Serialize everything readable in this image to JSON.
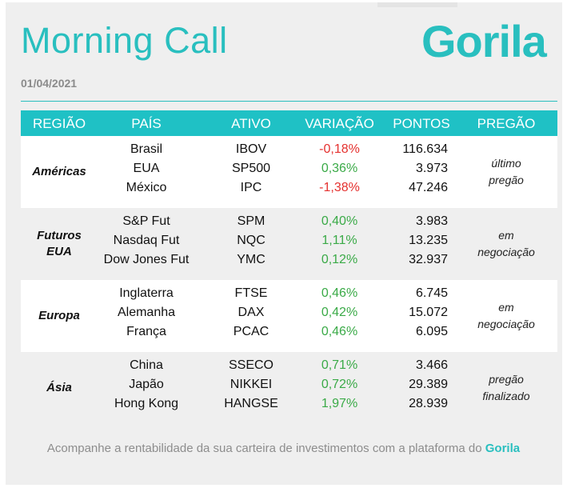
{
  "header": {
    "title": "Morning Call",
    "logo": "Gorila",
    "date": "01/04/2021"
  },
  "table": {
    "columns": [
      "REGIÃO",
      "PAÍS",
      "ATIVO",
      "VARIAÇÃO",
      "PONTOS",
      "PREGÃO"
    ],
    "groups": [
      {
        "region": "Américas",
        "status": "último\npregão",
        "rows": [
          {
            "country": "Brasil",
            "asset": "IBOV",
            "variation": "-0,18%",
            "points": "116.634"
          },
          {
            "country": "EUA",
            "asset": "SP500",
            "variation": "0,36%",
            "points": "3.973"
          },
          {
            "country": "México",
            "asset": "IPC",
            "variation": "-1,38%",
            "points": "47.246"
          }
        ]
      },
      {
        "region": "Futuros\nEUA",
        "status": "em\nnegociação",
        "rows": [
          {
            "country": "S&P Fut",
            "asset": "SPM",
            "variation": "0,40%",
            "points": "3.983"
          },
          {
            "country": "Nasdaq Fut",
            "asset": "NQC",
            "variation": "1,11%",
            "points": "13.235"
          },
          {
            "country": "Dow Jones Fut",
            "asset": "YMC",
            "variation": "0,12%",
            "points": "32.937"
          }
        ]
      },
      {
        "region": "Europa",
        "status": "em\nnegociação",
        "rows": [
          {
            "country": "Inglaterra",
            "asset": "FTSE",
            "variation": "0,46%",
            "points": "6.745"
          },
          {
            "country": "Alemanha",
            "asset": "DAX",
            "variation": "0,42%",
            "points": "15.072"
          },
          {
            "country": "França",
            "asset": "PCAC",
            "variation": "0,46%",
            "points": "6.095"
          }
        ]
      },
      {
        "region": "Ásia",
        "status": "pregão\nfinalizado",
        "rows": [
          {
            "country": "China",
            "asset": "SSECO",
            "variation": "0,71%",
            "points": "3.466"
          },
          {
            "country": "Japão",
            "asset": "NIKKEI",
            "variation": "0,72%",
            "points": "29.389"
          },
          {
            "country": "Hong Kong",
            "asset": "HANGSE",
            "variation": "1,97%",
            "points": "28.939"
          }
        ]
      }
    ]
  },
  "footer": {
    "text": "Acompanhe a rentabilidade da sua carteira de investimentos com a plataforma do",
    "brand": "Gorila"
  },
  "colors": {
    "accent": "#29bfbf",
    "header_bg": "#1fc1c5",
    "negative": "#e5312f",
    "positive": "#3aaa47"
  }
}
